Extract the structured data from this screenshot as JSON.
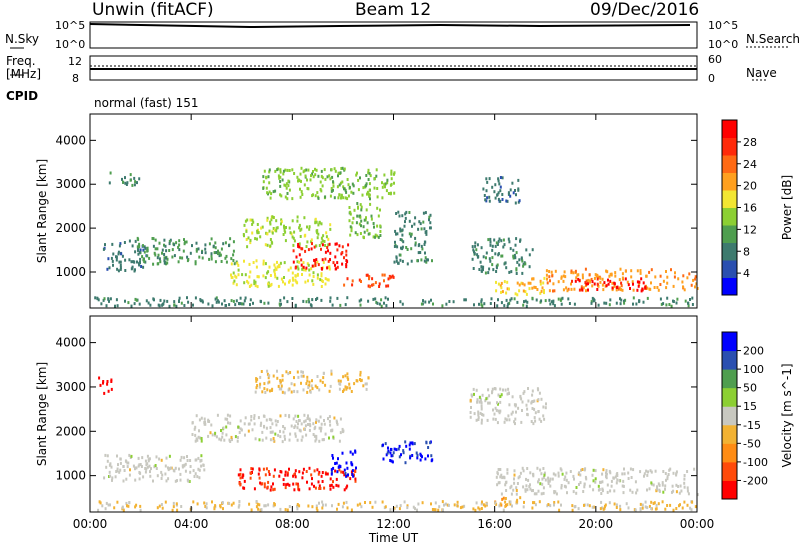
{
  "header": {
    "station": "Unwin (fitACF)",
    "beam": "Beam 12",
    "date": "09/Dec/2016"
  },
  "panels": {
    "nsky_label": "N.Sky",
    "nsky_ticks": [
      "10^5",
      "10^0"
    ],
    "nsearch_label": "N.Search",
    "nsearch_ticks": [
      "10^5",
      "10^0"
    ],
    "freq_label_line1": "Freq.",
    "freq_label_line2": "[MHz]",
    "freq_ticks": [
      "12",
      "8"
    ],
    "nave_label": "Nave",
    "nave_ticks": [
      "60",
      "0"
    ],
    "cpid_label": "CPID",
    "cpid_value": "normal (fast) 151"
  },
  "chart_data": [
    {
      "type": "heatmap",
      "name": "power",
      "ylabel": "Slant Range [km]",
      "xlabel": "Time UT",
      "x_ticks": [
        "00:00",
        "04:00",
        "08:00",
        "12:00",
        "16:00",
        "20:00",
        "00:00"
      ],
      "y_ticks": [
        1000,
        2000,
        3000,
        4000
      ],
      "xlim": [
        0,
        24
      ],
      "ylim": [
        180,
        4600
      ],
      "colorbar": {
        "label": "Power [dB]",
        "ticks": [
          4,
          8,
          12,
          16,
          20,
          24,
          28
        ],
        "range": [
          0,
          30
        ],
        "colors": [
          "#0000ff",
          "#2a4fb0",
          "#3d7a6e",
          "#4f9e4f",
          "#8ccf33",
          "#f2e633",
          "#ffa01f",
          "#ff6a14",
          "#ff2a0a",
          "#ff0000"
        ]
      },
      "echo_regions": [
        {
          "t": [
            0.5,
            2.2
          ],
          "r": [
            1050,
            1750
          ],
          "v": 7
        },
        {
          "t": [
            0.7,
            2.0
          ],
          "r": [
            2950,
            3300
          ],
          "v": 8
        },
        {
          "t": [
            1.8,
            5.8
          ],
          "r": [
            1200,
            1800
          ],
          "v": 10
        },
        {
          "t": [
            5.5,
            9.5
          ],
          "r": [
            700,
            1300
          ],
          "v": 16
        },
        {
          "t": [
            6.0,
            9.5
          ],
          "r": [
            1600,
            2300
          ],
          "v": 14
        },
        {
          "t": [
            8.0,
            10.2
          ],
          "r": [
            1100,
            1700
          ],
          "v": 27
        },
        {
          "t": [
            10.0,
            12.0
          ],
          "r": [
            700,
            1000
          ],
          "v": 24
        },
        {
          "t": [
            10.2,
            11.5
          ],
          "r": [
            1800,
            2600
          ],
          "v": 12
        },
        {
          "t": [
            6.8,
            12.0
          ],
          "r": [
            2700,
            3400
          ],
          "v": 13
        },
        {
          "t": [
            12.0,
            13.5
          ],
          "r": [
            1200,
            2400
          ],
          "v": 8
        },
        {
          "t": [
            15.0,
            17.5
          ],
          "r": [
            1000,
            1800
          ],
          "v": 8
        },
        {
          "t": [
            15.5,
            17.0
          ],
          "r": [
            2600,
            3200
          ],
          "v": 7
        },
        {
          "t": [
            16.0,
            18.0
          ],
          "r": [
            500,
            900
          ],
          "v": 18
        },
        {
          "t": [
            18.0,
            24.0
          ],
          "r": [
            600,
            1100
          ],
          "v": 20
        },
        {
          "t": [
            19.0,
            22.0
          ],
          "r": [
            600,
            900
          ],
          "v": 28
        },
        {
          "t": [
            0.0,
            24.0
          ],
          "r": [
            250,
            450
          ],
          "v": 8
        }
      ]
    },
    {
      "type": "heatmap",
      "name": "velocity",
      "ylabel": "Slant Range [km]",
      "xlabel": "Time UT",
      "x_ticks": [
        "00:00",
        "04:00",
        "08:00",
        "12:00",
        "16:00",
        "20:00",
        "00:00"
      ],
      "y_ticks": [
        1000,
        2000,
        3000,
        4000
      ],
      "xlim": [
        0,
        24
      ],
      "ylim": [
        180,
        4600
      ],
      "colorbar": {
        "label": "Velocity [m s^-1]",
        "ticks": [
          -200,
          -100,
          -50,
          -15,
          15,
          50,
          100,
          200
        ],
        "range": [
          -250,
          250
        ],
        "colors": [
          "#ff0000",
          "#ff4a0a",
          "#ff8c14",
          "#f2b233",
          "#c8c8c0",
          "#8ccf33",
          "#4f9e4f",
          "#2a4fb0",
          "#0000ff"
        ]
      },
      "echo_regions": [
        {
          "t": [
            0.3,
            0.9
          ],
          "r": [
            2850,
            3250
          ],
          "v": -220
        },
        {
          "t": [
            0.5,
            4.5
          ],
          "r": [
            900,
            1500
          ],
          "v": 0
        },
        {
          "t": [
            4.0,
            10.0
          ],
          "r": [
            1800,
            2400
          ],
          "v": 0
        },
        {
          "t": [
            5.8,
            10.5
          ],
          "r": [
            700,
            1200
          ],
          "v": -200
        },
        {
          "t": [
            9.5,
            10.5
          ],
          "r": [
            1000,
            1600
          ],
          "v": 220
        },
        {
          "t": [
            11.5,
            13.5
          ],
          "r": [
            1300,
            1800
          ],
          "v": 200
        },
        {
          "t": [
            6.5,
            11.0
          ],
          "r": [
            2900,
            3400
          ],
          "v": -40
        },
        {
          "t": [
            15.0,
            18.0
          ],
          "r": [
            2200,
            3000
          ],
          "v": 0
        },
        {
          "t": [
            16.0,
            24.0
          ],
          "r": [
            600,
            1200
          ],
          "v": 0
        },
        {
          "t": [
            15.5,
            17.0
          ],
          "r": [
            350,
            550
          ],
          "v": -60
        },
        {
          "t": [
            0.0,
            24.0
          ],
          "r": [
            250,
            450
          ],
          "v": -30
        }
      ]
    }
  ]
}
